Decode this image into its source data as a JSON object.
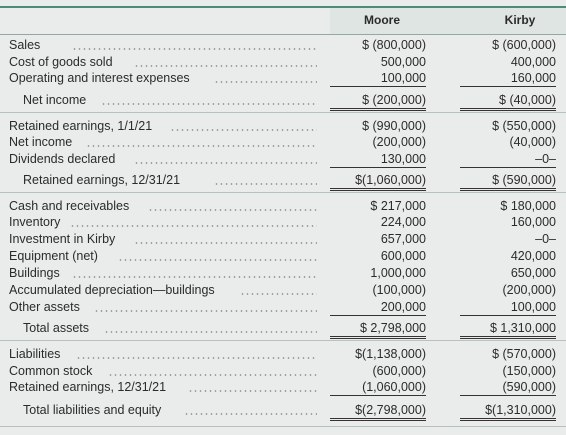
{
  "columns": {
    "moore": "Moore",
    "kirby": "Kirby"
  },
  "rows": [
    {
      "label": "Sales",
      "moore": "$ (800,000)",
      "kirby": "$ (600,000)"
    },
    {
      "label": "Cost of goods sold",
      "moore": "500,000",
      "kirby": "400,000"
    },
    {
      "label": "Operating and interest expenses",
      "moore": "100,000",
      "kirby": "160,000"
    },
    {
      "label": "Net income",
      "moore": "$ (200,000)",
      "kirby": "$ (40,000)"
    },
    {
      "label": "Retained earnings, 1/1/21",
      "moore": "$ (990,000)",
      "kirby": "$ (550,000)"
    },
    {
      "label": "Net income",
      "moore": "(200,000)",
      "kirby": "(40,000)"
    },
    {
      "label": "Dividends declared",
      "moore": "130,000",
      "kirby": "–0–"
    },
    {
      "label": "Retained earnings, 12/31/21",
      "moore": "$(1,060,000)",
      "kirby": "$ (590,000)"
    },
    {
      "label": "Cash and receivables",
      "moore": "$ 217,000",
      "kirby": "$ 180,000"
    },
    {
      "label": "Inventory",
      "moore": "224,000",
      "kirby": "160,000"
    },
    {
      "label": "Investment in Kirby",
      "moore": "657,000",
      "kirby": "–0–"
    },
    {
      "label": "Equipment (net)",
      "moore": "600,000",
      "kirby": "420,000"
    },
    {
      "label": "Buildings",
      "moore": "1,000,000",
      "kirby": "650,000"
    },
    {
      "label": "Accumulated depreciation—buildings",
      "moore": "(100,000)",
      "kirby": "(200,000)"
    },
    {
      "label": "Other assets",
      "moore": "200,000",
      "kirby": "100,000"
    },
    {
      "label": "Total assets",
      "moore": "$ 2,798,000",
      "kirby": "$ 1,310,000"
    },
    {
      "label": "Liabilities",
      "moore": "$(1,138,000)",
      "kirby": "$ (570,000)"
    },
    {
      "label": "Common stock",
      "moore": "(600,000)",
      "kirby": "(150,000)"
    },
    {
      "label": "Retained earnings, 12/31/21",
      "moore": "(1,060,000)",
      "kirby": "(590,000)"
    },
    {
      "label": "Total liabilities and equity",
      "moore": "$(2,798,000)",
      "kirby": "$(1,310,000)"
    }
  ]
}
